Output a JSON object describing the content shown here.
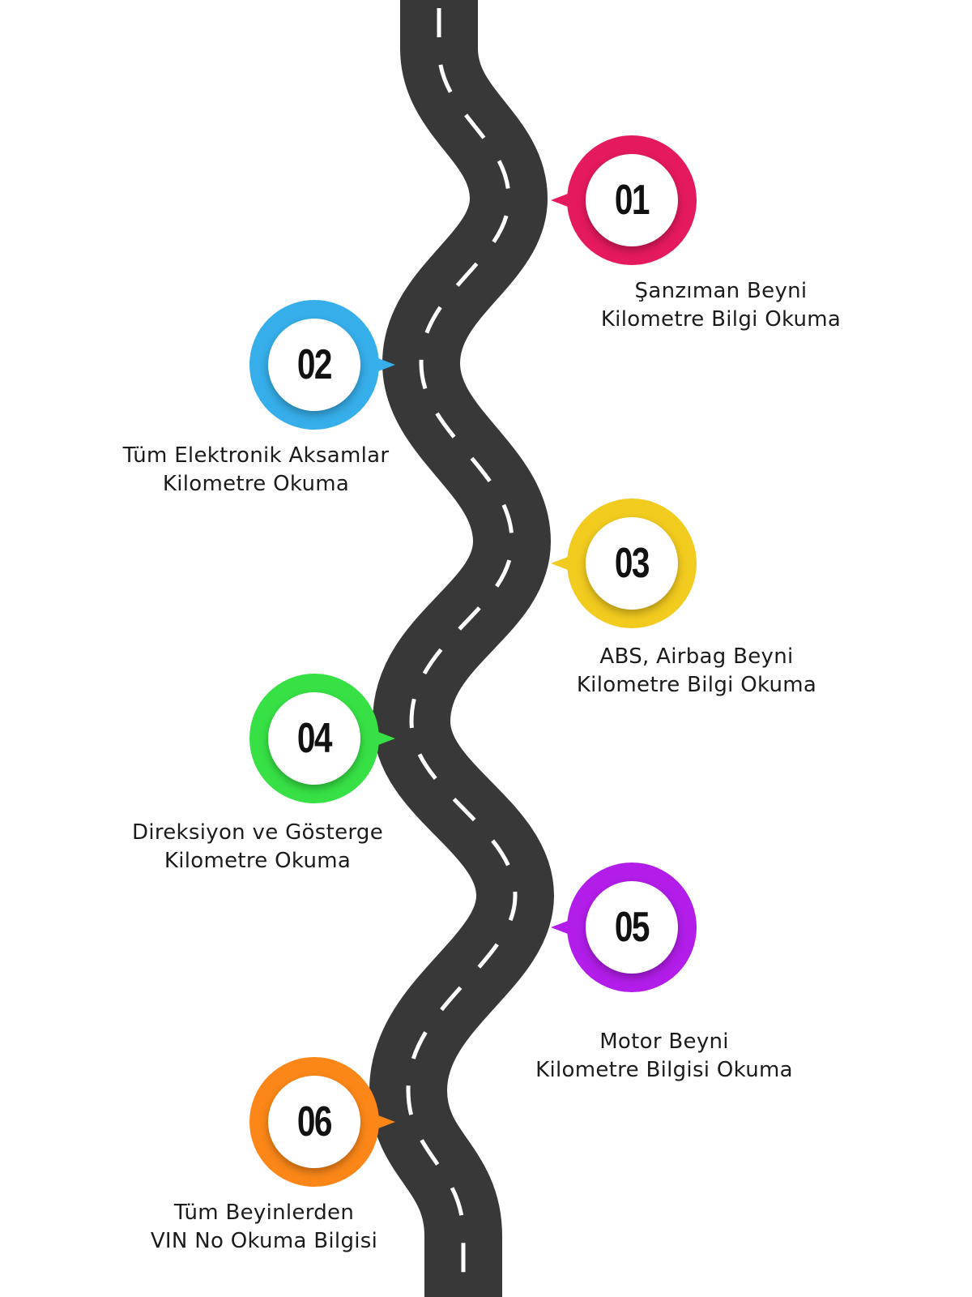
{
  "steps": [
    {
      "number": "01",
      "line1": "Şanzıman Beyni",
      "line2": "Kilometre Bilgi Okuma",
      "color": "#e5195e"
    },
    {
      "number": "02",
      "line1": "Tüm Elektronik Aksamlar",
      "line2": "Kilometre Okuma",
      "color": "#36aeea"
    },
    {
      "number": "03",
      "line1": "ABS, Airbag Beyni",
      "line2": "Kilometre Bilgi Okuma",
      "color": "#f2cb1f"
    },
    {
      "number": "04",
      "line1": "Direksiyon ve Gösterge",
      "line2": "Kilometre Okuma",
      "color": "#37e145"
    },
    {
      "number": "05",
      "line1": "Motor Beyni",
      "line2": "Kilometre Bilgisi Okuma",
      "color": "#b21de9"
    },
    {
      "number": "06",
      "line1": "Tüm Beyinlerden",
      "line2": "VIN No Okuma Bilgisi",
      "color": "#fc8718"
    }
  ],
  "road": {
    "asphalt_color": "#383838",
    "dash_color": "#ffffff"
  }
}
